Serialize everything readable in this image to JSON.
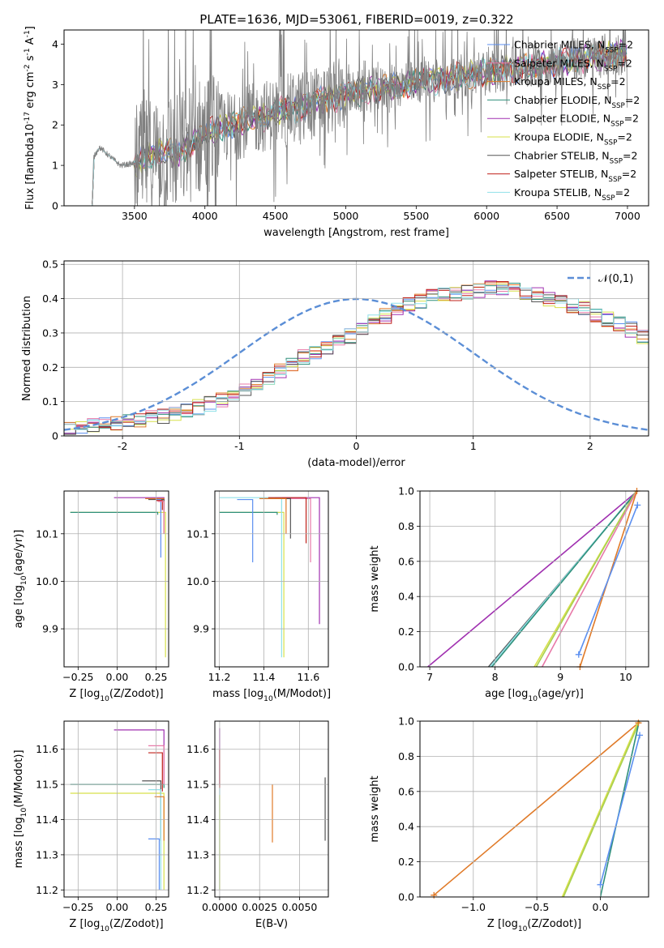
{
  "figure": {
    "title": "PLATE=1636, MJD=53061, FIBERID=0019, z=0.322"
  },
  "legend_entries": [
    {
      "label": "Chabrier MILES, N$_{SSP}$=2",
      "color": "#5b8ff0"
    },
    {
      "label": "Salpeter MILES, N$_{SSP}$=2",
      "color": "#e879a8"
    },
    {
      "label": "Kroupa MILES, N$_{SSP}$=2",
      "color": "#e07a28"
    },
    {
      "label": "Chabrier ELODIE, N$_{SSP}$=2",
      "color": "#2f8f7a"
    },
    {
      "label": "Salpeter ELODIE, N$_{SSP}$=2",
      "color": "#a030b0"
    },
    {
      "label": "Kroupa ELODIE, N$_{SSP}$=2",
      "color": "#d7e04a"
    },
    {
      "label": "Chabrier STELIB, N$_{SSP}$=2",
      "color": "#555555"
    },
    {
      "label": "Salpeter STELIB, N$_{SSP}$=2",
      "color": "#c0201a"
    },
    {
      "label": "Kroupa STELIB, N$_{SSP}$=2",
      "color": "#8fe0e8"
    }
  ],
  "chart_data": [
    {
      "id": "spectrum",
      "type": "line",
      "xlabel": "wavelength [Angstrom, rest frame]",
      "ylabel": "Flux [f$_\\lambda$10$^{-17}$ erg cm$^{-2}$ s$^{-1}$ A$^{-1}$]",
      "xlim": [
        3000,
        7150
      ],
      "ylim": [
        0,
        4.35
      ],
      "xticks": [
        3500,
        4000,
        4500,
        5000,
        5500,
        6000,
        6500,
        7000
      ],
      "yticks": [
        0,
        1,
        2,
        3,
        4
      ],
      "grid": false,
      "legend": "right",
      "data_range": [
        3200,
        7000
      ],
      "continuum": [
        [
          3200,
          0
        ],
        [
          3210,
          1.2
        ],
        [
          3250,
          1.45
        ],
        [
          3300,
          1.3
        ],
        [
          3400,
          1.0
        ],
        [
          3500,
          1.05
        ],
        [
          3700,
          1.4
        ],
        [
          3800,
          1.3
        ],
        [
          4000,
          1.8
        ],
        [
          4300,
          2.1
        ],
        [
          4500,
          2.3
        ],
        [
          5000,
          2.75
        ],
        [
          5500,
          3.05
        ],
        [
          6000,
          3.3
        ],
        [
          6500,
          3.55
        ],
        [
          7000,
          3.8
        ]
      ],
      "noise_start": 3500
    },
    {
      "id": "residuals",
      "type": "histogram",
      "xlabel": "(data-model)/error",
      "ylabel": "Normed distribution",
      "xlim": [
        -2.5,
        2.5
      ],
      "ylim": [
        0,
        0.51
      ],
      "xticks": [
        -2,
        -1,
        0,
        1,
        2
      ],
      "yticks": [
        0.0,
        0.1,
        0.2,
        0.3,
        0.4,
        0.5
      ],
      "grid": true,
      "bin_width": 0.1,
      "bin_start": -2.5,
      "envelope": [
        0.025,
        0.028,
        0.03,
        0.033,
        0.037,
        0.041,
        0.046,
        0.052,
        0.058,
        0.066,
        0.074,
        0.084,
        0.094,
        0.106,
        0.12,
        0.135,
        0.152,
        0.171,
        0.19,
        0.21,
        0.23,
        0.245,
        0.26,
        0.275,
        0.29,
        0.31,
        0.33,
        0.35,
        0.37,
        0.385,
        0.395,
        0.405,
        0.41,
        0.415,
        0.42,
        0.425,
        0.43,
        0.43,
        0.425,
        0.42,
        0.41,
        0.4,
        0.39,
        0.38,
        0.37,
        0.355,
        0.34,
        0.325,
        0.31,
        0.29,
        0.27,
        0.25,
        0.23,
        0.21,
        0.19,
        0.17,
        0.15,
        0.13,
        0.115,
        0.1,
        0.09,
        0.085,
        0.08,
        0.078,
        0.075,
        0.07,
        0.065,
        0.06,
        0.055,
        0.05,
        0.045,
        0.04,
        0.035,
        0.03,
        0.028,
        0.026,
        0.024,
        0.022,
        0.02,
        0.018
      ],
      "gaussian_name": "$\\mathcal{N}(0,1)$",
      "gaussian_color": "#5b8ed6",
      "legend": "upper right"
    },
    {
      "id": "Z_vs_age",
      "type": "step",
      "xlabel": "Z [log$_{10}$($Z/Z_\\odot$)]",
      "ylabel": "age  [log$_{10}$($age/yr$)]",
      "xlim": [
        -0.34,
        0.33
      ],
      "ylim": [
        9.82,
        10.19
      ],
      "xticks": [
        -0.25,
        0.0,
        0.25
      ],
      "xtick_labels": [
        "−0.25",
        "0.00",
        "0.25"
      ],
      "yticks": [
        9.9,
        10.0,
        10.1
      ],
      "ytick_labels": [
        "9.9",
        "10.0",
        "10.1"
      ],
      "grid": true,
      "curves": [
        {
          "color": "#a030b0",
          "x0": -0.02,
          "y0": 10.176,
          "x1": 0.3,
          "y1": 10.17
        },
        {
          "color": "#d7e04a",
          "x0": -0.3,
          "y0": 10.145,
          "x1": 0.31,
          "y1": 9.84
        },
        {
          "color": "#2f8f7a",
          "x0": -0.3,
          "y0": 10.145,
          "x1": 0.26,
          "y1": 10.14
        },
        {
          "color": "#e07a28",
          "x0": 0.18,
          "y0": 10.174,
          "x1": 0.3,
          "y1": 10.1
        },
        {
          "color": "#555555",
          "x0": 0.2,
          "y0": 10.172,
          "x1": 0.3,
          "y1": 10.15
        },
        {
          "color": "#5b8ff0",
          "x0": 0.25,
          "y0": 10.172,
          "x1": 0.28,
          "y1": 10.05
        },
        {
          "color": "#c0201a",
          "x0": 0.25,
          "y0": 10.17,
          "x1": 0.29,
          "y1": 10.15
        },
        {
          "color": "#e879a8",
          "x0": 0.26,
          "y0": 10.168,
          "x1": 0.3,
          "y1": 10.1
        }
      ]
    },
    {
      "id": "mass_vs_age",
      "type": "step",
      "xlabel": "mass [log$_{10}$($M/M_\\odot$)]",
      "ylabel": "",
      "xlim": [
        11.18,
        11.69
      ],
      "ylim": [
        9.82,
        10.19
      ],
      "xticks": [
        11.2,
        11.4,
        11.6
      ],
      "xtick_labels": [
        "11.2",
        "11.4",
        "11.6"
      ],
      "yticks": [
        9.9,
        10.0,
        10.1
      ],
      "ytick_labels": [
        "9.9",
        "10.0",
        "10.1"
      ],
      "grid": true,
      "curves": [
        {
          "color": "#a030b0",
          "x0": 11.45,
          "y0": 10.176,
          "x1": 11.65,
          "y1": 9.91
        },
        {
          "color": "#d7e04a",
          "x0": 11.2,
          "y0": 10.145,
          "x1": 11.49,
          "y1": 9.84
        },
        {
          "color": "#8fe0e8",
          "x0": 11.2,
          "y0": 10.176,
          "x1": 11.48,
          "y1": 9.84
        },
        {
          "color": "#2f8f7a",
          "x0": 11.2,
          "y0": 10.145,
          "x1": 11.46,
          "y1": 10.14
        },
        {
          "color": "#e879a8",
          "x0": 11.4,
          "y0": 10.174,
          "x1": 11.61,
          "y1": 10.04
        },
        {
          "color": "#c0201a",
          "x0": 11.42,
          "y0": 10.176,
          "x1": 11.59,
          "y1": 10.08
        },
        {
          "color": "#555555",
          "x0": 11.42,
          "y0": 10.174,
          "x1": 11.52,
          "y1": 10.09
        },
        {
          "color": "#e07a28",
          "x0": 11.38,
          "y0": 10.174,
          "x1": 11.5,
          "y1": 10.1
        },
        {
          "color": "#5b8ff0",
          "x0": 11.28,
          "y0": 10.172,
          "x1": 11.35,
          "y1": 10.04
        }
      ]
    },
    {
      "id": "age_weight",
      "type": "line",
      "xlabel": "age  [log$_{10}$($age/yr$)]",
      "ylabel": "mass weight",
      "xlim": [
        6.85,
        10.35
      ],
      "ylim": [
        0,
        1.0
      ],
      "xticks": [
        7,
        8,
        9,
        10
      ],
      "xtick_labels": [
        "7",
        "8",
        "9",
        "10"
      ],
      "yticks": [
        0.0,
        0.2,
        0.4,
        0.6,
        0.8,
        1.0
      ],
      "ytick_labels": [
        "0.0",
        "0.2",
        "0.4",
        "0.6",
        "0.8",
        "1.0"
      ],
      "grid": true,
      "series": [
        {
          "color": "#a030b0",
          "points": [
            [
              6.97,
              0.0
            ],
            [
              10.18,
              1.0
            ]
          ]
        },
        {
          "color": "#555555",
          "points": [
            [
              7.9,
              0.0
            ],
            [
              10.18,
              1.0
            ]
          ]
        },
        {
          "color": "#8fe0e8",
          "points": [
            [
              7.92,
              0.0
            ],
            [
              10.17,
              1.0
            ]
          ]
        },
        {
          "color": "#2f8f7a",
          "points": [
            [
              7.95,
              0.0
            ],
            [
              10.17,
              1.0
            ]
          ]
        },
        {
          "color": "#d7e04a",
          "points": [
            [
              8.6,
              0.0
            ],
            [
              10.16,
              1.0
            ]
          ]
        },
        {
          "color": "#a8d050",
          "points": [
            [
              8.63,
              0.0
            ],
            [
              10.16,
              1.0
            ]
          ]
        },
        {
          "color": "#e879a8",
          "points": [
            [
              8.72,
              0.0
            ],
            [
              10.17,
              1.0
            ]
          ]
        },
        {
          "color": "#e07a28",
          "points": [
            [
              9.3,
              0.0
            ],
            [
              10.17,
              1.0
            ]
          ],
          "markers": true
        },
        {
          "color": "#5b8ff0",
          "points": [
            [
              9.28,
              0.07
            ],
            [
              10.18,
              0.92
            ]
          ],
          "markers": true
        }
      ]
    },
    {
      "id": "Z_vs_mass",
      "type": "step",
      "xlabel": "Z [log$_{10}$($Z/Z_\\odot$)]",
      "ylabel": "mass [log$_{10}$($M/M_\\odot$)]",
      "xlim": [
        -0.34,
        0.33
      ],
      "ylim": [
        11.18,
        11.68
      ],
      "xticks": [
        -0.25,
        0.0,
        0.25
      ],
      "xtick_labels": [
        "−0.25",
        "0.00",
        "0.25"
      ],
      "yticks": [
        11.2,
        11.3,
        11.4,
        11.5,
        11.6
      ],
      "ytick_labels": [
        "11.2",
        "11.3",
        "11.4",
        "11.5",
        "11.6"
      ],
      "grid": true,
      "curves": [
        {
          "color": "#a030b0",
          "x0": -0.02,
          "y0": 11.655,
          "x1": 0.3,
          "y1": 11.5
        },
        {
          "color": "#2f8f7a",
          "x0": -0.3,
          "y0": 11.5,
          "x1": 0.3,
          "y1": 11.49
        },
        {
          "color": "#d7e04a",
          "x0": -0.3,
          "y0": 11.475,
          "x1": 0.3,
          "y1": 11.2
        },
        {
          "color": "#e879a8",
          "x0": 0.2,
          "y0": 11.61,
          "x1": 0.3,
          "y1": 11.5
        },
        {
          "color": "#c0201a",
          "x0": 0.2,
          "y0": 11.59,
          "x1": 0.29,
          "y1": 11.48
        },
        {
          "color": "#555555",
          "x0": 0.16,
          "y0": 11.51,
          "x1": 0.28,
          "y1": 11.34
        },
        {
          "color": "#8fe0e8",
          "x0": 0.2,
          "y0": 11.485,
          "x1": 0.28,
          "y1": 11.2
        },
        {
          "color": "#e07a28",
          "x0": 0.24,
          "y0": 11.465,
          "x1": 0.3,
          "y1": 11.34
        },
        {
          "color": "#5b8ff0",
          "x0": 0.2,
          "y0": 11.345,
          "x1": 0.27,
          "y1": 11.2
        }
      ]
    },
    {
      "id": "ebv_vs_mass",
      "type": "vlines",
      "xlabel": "E(B-V)",
      "ylabel": "",
      "xlim": [
        -0.0003,
        0.0068
      ],
      "ylim": [
        11.18,
        11.68
      ],
      "xticks": [
        0.0,
        0.0025,
        0.005
      ],
      "xtick_labels": [
        "0.0000",
        "0.0025",
        "0.0050"
      ],
      "yticks": [
        11.2,
        11.3,
        11.4,
        11.5,
        11.6
      ],
      "ytick_labels": [
        "11.2",
        "11.3",
        "11.4",
        "11.5",
        "11.6"
      ],
      "grid": true,
      "lines": [
        {
          "color": "#a030b0",
          "x": 0.0,
          "y0": 11.5,
          "y1": 11.66
        },
        {
          "color": "#c0201a",
          "x": 0.0,
          "y0": 11.49,
          "y1": 11.6
        },
        {
          "color": "#8fe0e8",
          "x": 0.0,
          "y0": 11.2,
          "y1": 11.49
        },
        {
          "color": "#d7e04a",
          "x": 0.0,
          "y0": 11.2,
          "y1": 11.47
        },
        {
          "color": "#e07a28",
          "x": 0.0033,
          "y0": 11.335,
          "y1": 11.5
        },
        {
          "color": "#555555",
          "x": 0.0066,
          "y0": 11.34,
          "y1": 11.52
        }
      ]
    },
    {
      "id": "Z_weight",
      "type": "line",
      "xlabel": "Z [log$_{10}$($Z/Z_\\odot$)]",
      "ylabel": "mass weight",
      "xlim": [
        -1.42,
        0.38
      ],
      "ylim": [
        0,
        1.0
      ],
      "xticks": [
        -1.0,
        -0.5,
        0.0
      ],
      "xtick_labels": [
        "−1.0",
        "−0.5",
        "0.0"
      ],
      "yticks": [
        0.0,
        0.2,
        0.4,
        0.6,
        0.8,
        1.0
      ],
      "ytick_labels": [
        "0.0",
        "0.2",
        "0.4",
        "0.6",
        "0.8",
        "1.0"
      ],
      "grid": true,
      "series": [
        {
          "color": "#e07a28",
          "points": [
            [
              -1.31,
              0.01
            ],
            [
              0.3,
              0.99
            ]
          ],
          "markers": true
        },
        {
          "color": "#d7e04a",
          "points": [
            [
              -0.3,
              0.0
            ],
            [
              0.3,
              1.0
            ]
          ]
        },
        {
          "color": "#a8d050",
          "points": [
            [
              -0.29,
              0.0
            ],
            [
              0.31,
              1.0
            ]
          ]
        },
        {
          "color": "#2f8f7a",
          "points": [
            [
              0.0,
              0.0
            ],
            [
              0.3,
              0.98
            ]
          ]
        },
        {
          "color": "#5b8ff0",
          "points": [
            [
              0.0,
              0.07
            ],
            [
              0.31,
              0.92
            ]
          ],
          "markers": true
        }
      ]
    }
  ]
}
